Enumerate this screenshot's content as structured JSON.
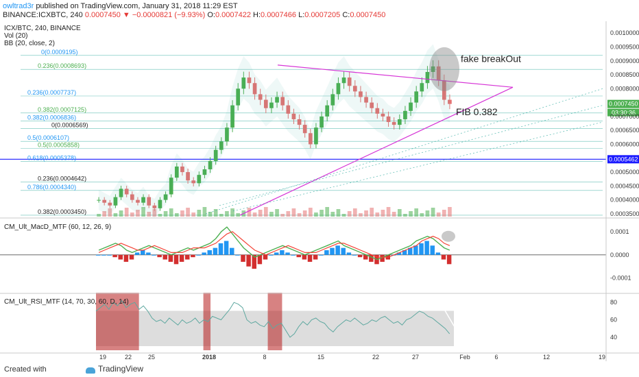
{
  "header": {
    "user": "owltrad3r",
    "published": "published on TradingView.com, January 31, 2018 11:29 EST",
    "symbol": "BINANCE:ICXBTC, 240",
    "last": "0.0007450",
    "change": "▼ −0.0000821 (−9.93%)",
    "o_label": "O:",
    "o": "0.0007422",
    "h_label": "H:",
    "h": "0.0007466",
    "l_label": "L:",
    "l": "0.0007205",
    "c_label": "C:",
    "c": "0.0007450"
  },
  "legend": {
    "title": "ICX/BTC, 240, BINANCE",
    "vol": "Vol (20)",
    "bb": "BB (20, close, 2)"
  },
  "colors": {
    "up": "#4caf50",
    "down": "#e57373",
    "triangle": "#d633d6",
    "fib_line": "#26a69a",
    "macd_hist_pos": "#2196f3",
    "macd_hist_neg": "#d32f2f",
    "macd_signal_green": "#4caf50",
    "macd_signal_red": "#f44336",
    "rsi_line": "#5fa8a0",
    "rsi_overbought": "#b71c1c",
    "level_blue": "#1a1aff"
  },
  "chart_data": [
    {
      "type": "candlestick",
      "title": "ICX/BTC, 240, BINANCE",
      "ylim": [
        0.00034,
        0.00103
      ],
      "y_ticks": [
        "0.0010000",
        "0.0009500",
        "0.0009000",
        "0.0008500",
        "0.0008000",
        "0.0007450",
        "0.0007000",
        "0.0006500",
        "0.0006000",
        "0.0005462",
        "0.0005000",
        "0.0004500",
        "0.0004000",
        "0.0003500"
      ],
      "y_tick_values": [
        0.001,
        0.00095,
        0.0009,
        0.00085,
        0.0008,
        0.000745,
        0.0007,
        0.00065,
        0.0006,
        0.0005462,
        0.0005,
        0.00045,
        0.0004,
        0.00035
      ],
      "current_price": "0.0007450",
      "countdown": "03:30:36",
      "marked_level": "0.0005462",
      "x_ticks": [
        "19",
        "22",
        "25",
        "2018",
        "8",
        "15",
        "22",
        "27",
        "Feb",
        "6",
        "12",
        "19"
      ],
      "close_series": [
        0.0004,
        0.00039,
        0.00038,
        0.00041,
        0.00044,
        0.00042,
        0.0004,
        0.00039,
        0.00041,
        0.00038,
        0.00037,
        0.0004,
        0.00042,
        0.00048,
        0.00052,
        0.0005,
        0.00047,
        0.00046,
        0.00049,
        0.00051,
        0.00054,
        0.00058,
        0.00061,
        0.00066,
        0.00074,
        0.0008,
        0.00084,
        0.00082,
        0.00078,
        0.00076,
        0.00073,
        0.00075,
        0.00077,
        0.00074,
        0.00071,
        0.00069,
        0.00067,
        0.00064,
        0.0006,
        0.00066,
        0.0007,
        0.00074,
        0.00078,
        0.00082,
        0.00084,
        0.00081,
        0.00079,
        0.00077,
        0.00075,
        0.00073,
        0.00071,
        0.0007,
        0.00068,
        0.00067,
        0.00069,
        0.00072,
        0.00075,
        0.00079,
        0.00082,
        0.00086,
        0.00088,
        0.00083,
        0.00076,
        0.000745
      ],
      "fib_levels": [
        {
          "label": "0(0.0009195)",
          "value": 0.0009195,
          "color": "#2196f3"
        },
        {
          "label": "0.236(0.0008693)",
          "value": 0.0008693,
          "color": "#4caf50"
        },
        {
          "label": "0.236(0.0007737)",
          "value": 0.0007737,
          "color": "#2196f3"
        },
        {
          "label": "0.382(0.0007125)",
          "value": 0.0007125,
          "color": "#4caf50"
        },
        {
          "label": "0.382(0.0006836)",
          "value": 0.0006836,
          "color": "#2196f3"
        },
        {
          "label": "0(0.0006569)",
          "value": 0.0006569,
          "color": "#222222"
        },
        {
          "label": "0.5(0.0006107)",
          "value": 0.0006107,
          "color": "#2196f3"
        },
        {
          "label": "0.5(0.0005858)",
          "value": 0.0005858,
          "color": "#4caf50"
        },
        {
          "label": "0.618(0.0005378)",
          "value": 0.0005378,
          "color": "#2196f3"
        },
        {
          "label": "0.236(0.0004642)",
          "value": 0.0004642,
          "color": "#222222"
        },
        {
          "label": "0.786(0.0004340)",
          "value": 0.000434,
          "color": "#2196f3"
        },
        {
          "label": "0.382(0.0003450)",
          "value": 0.000345,
          "color": "#222222"
        }
      ],
      "annotations": [
        "fake breakOut",
        "FIB 0.382"
      ]
    },
    {
      "type": "histogram",
      "title": "CM_Ult_MacD_MTF (60, 12, 26, 9)",
      "y_ticks": [
        "0.0001",
        "0.0000",
        "-0.0001"
      ],
      "y_tick_values": [
        0.0001,
        0.0,
        -0.0001
      ],
      "ylim": [
        -0.00016,
        0.00015
      ],
      "histogram": [
        0,
        0,
        0,
        -1e-05,
        -2e-05,
        -3e-05,
        -2e-05,
        1e-05,
        2e-05,
        1e-05,
        0.0,
        -1e-05,
        -2e-05,
        -3e-05,
        -4e-05,
        -3e-05,
        -2e-05,
        -1e-05,
        0.0,
        1e-05,
        2e-05,
        3e-05,
        5e-05,
        6e-05,
        3e-05,
        0.0,
        -3e-05,
        -5e-05,
        -6e-05,
        -4e-05,
        -2e-05,
        0.0,
        1e-05,
        2e-05,
        1e-05,
        0.0,
        -1e-05,
        -2e-05,
        -3e-05,
        -2e-05,
        0.0,
        2e-05,
        3e-05,
        4e-05,
        3e-05,
        1e-05,
        0.0,
        -1e-05,
        -2e-05,
        -3e-05,
        -4e-05,
        -3e-05,
        -2e-05,
        0.0,
        1e-05,
        2e-05,
        3e-05,
        4e-05,
        5e-05,
        6e-05,
        4e-05,
        1e-05,
        -2e-05,
        -4e-05
      ],
      "macd": [
        2e-05,
        3e-05,
        4e-05,
        5e-05,
        4e-05,
        2e-05,
        1e-05,
        2e-05,
        3e-05,
        4e-05,
        3e-05,
        2e-05,
        1e-05,
        0.0,
        1e-05,
        2e-05,
        3e-05,
        2e-05,
        3e-05,
        4e-05,
        5e-05,
        7e-05,
        0.0001,
        0.00012,
        9e-05,
        6e-05,
        3e-05,
        1e-05,
        -1e-05,
        0.0,
        1e-05,
        2e-05,
        3e-05,
        4e-05,
        3e-05,
        2e-05,
        1e-05,
        0.0,
        1e-05,
        2e-05,
        3e-05,
        4e-05,
        5e-05,
        6e-05,
        4e-05,
        3e-05,
        2e-05,
        1e-05,
        0.0,
        -1e-05,
        -2e-05,
        -1e-05,
        0.0,
        1e-05,
        2e-05,
        3e-05,
        4e-05,
        6e-05,
        7e-05,
        8e-05,
        7e-05,
        5e-05,
        3e-05,
        2e-05
      ],
      "signal": [
        1e-05,
        2e-05,
        3e-05,
        4e-05,
        5e-05,
        4e-05,
        3e-05,
        2e-05,
        2e-05,
        3e-05,
        4e-05,
        3e-05,
        2e-05,
        1e-05,
        1e-05,
        1e-05,
        2e-05,
        3e-05,
        3e-05,
        3e-05,
        4e-05,
        5e-05,
        7e-05,
        9e-05,
        0.0001,
        8e-05,
        6e-05,
        4e-05,
        2e-05,
        1e-05,
        0.0,
        1e-05,
        2e-05,
        3e-05,
        4e-05,
        3e-05,
        2e-05,
        1e-05,
        1e-05,
        1e-05,
        2e-05,
        3e-05,
        4e-05,
        5e-05,
        5e-05,
        4e-05,
        3e-05,
        2e-05,
        1e-05,
        0.0,
        -1e-05,
        -1e-05,
        -1e-05,
        0.0,
        1e-05,
        2e-05,
        3e-05,
        4e-05,
        6e-05,
        7e-05,
        8e-05,
        7e-05,
        5e-05,
        4e-05
      ]
    },
    {
      "type": "line",
      "title": "CM_Ult_RSI_MTF (14, 70, 30, 60, D, 14)",
      "y_ticks": [
        "80",
        "60",
        "40"
      ],
      "y_tick_values": [
        80,
        60,
        40
      ],
      "ylim": [
        25,
        88
      ],
      "bands": [
        70,
        50,
        30
      ],
      "rsi": [
        70,
        74,
        78,
        72,
        80,
        76,
        82,
        74,
        78,
        80,
        72,
        76,
        70,
        62,
        58,
        60,
        56,
        62,
        58,
        54,
        60,
        56,
        58,
        62,
        56,
        60,
        58,
        64,
        62,
        60,
        66,
        72,
        80,
        78,
        74,
        60,
        56,
        58,
        54,
        52,
        58,
        50,
        54,
        56,
        48,
        40,
        44,
        52,
        58,
        54,
        60,
        62,
        58,
        56,
        50,
        46,
        52,
        56,
        60,
        58,
        62,
        58,
        54,
        56,
        60,
        58,
        62,
        64,
        60,
        56,
        58,
        54,
        60,
        62,
        66,
        70,
        68,
        64,
        62,
        58,
        54,
        50,
        44
      ],
      "overbought_ranges": [
        [
          0.0,
          0.12
        ],
        [
          0.3,
          0.32
        ],
        [
          0.48,
          0.52
        ]
      ]
    }
  ],
  "footer": {
    "created": "Created with",
    "brand": "TradingView"
  }
}
